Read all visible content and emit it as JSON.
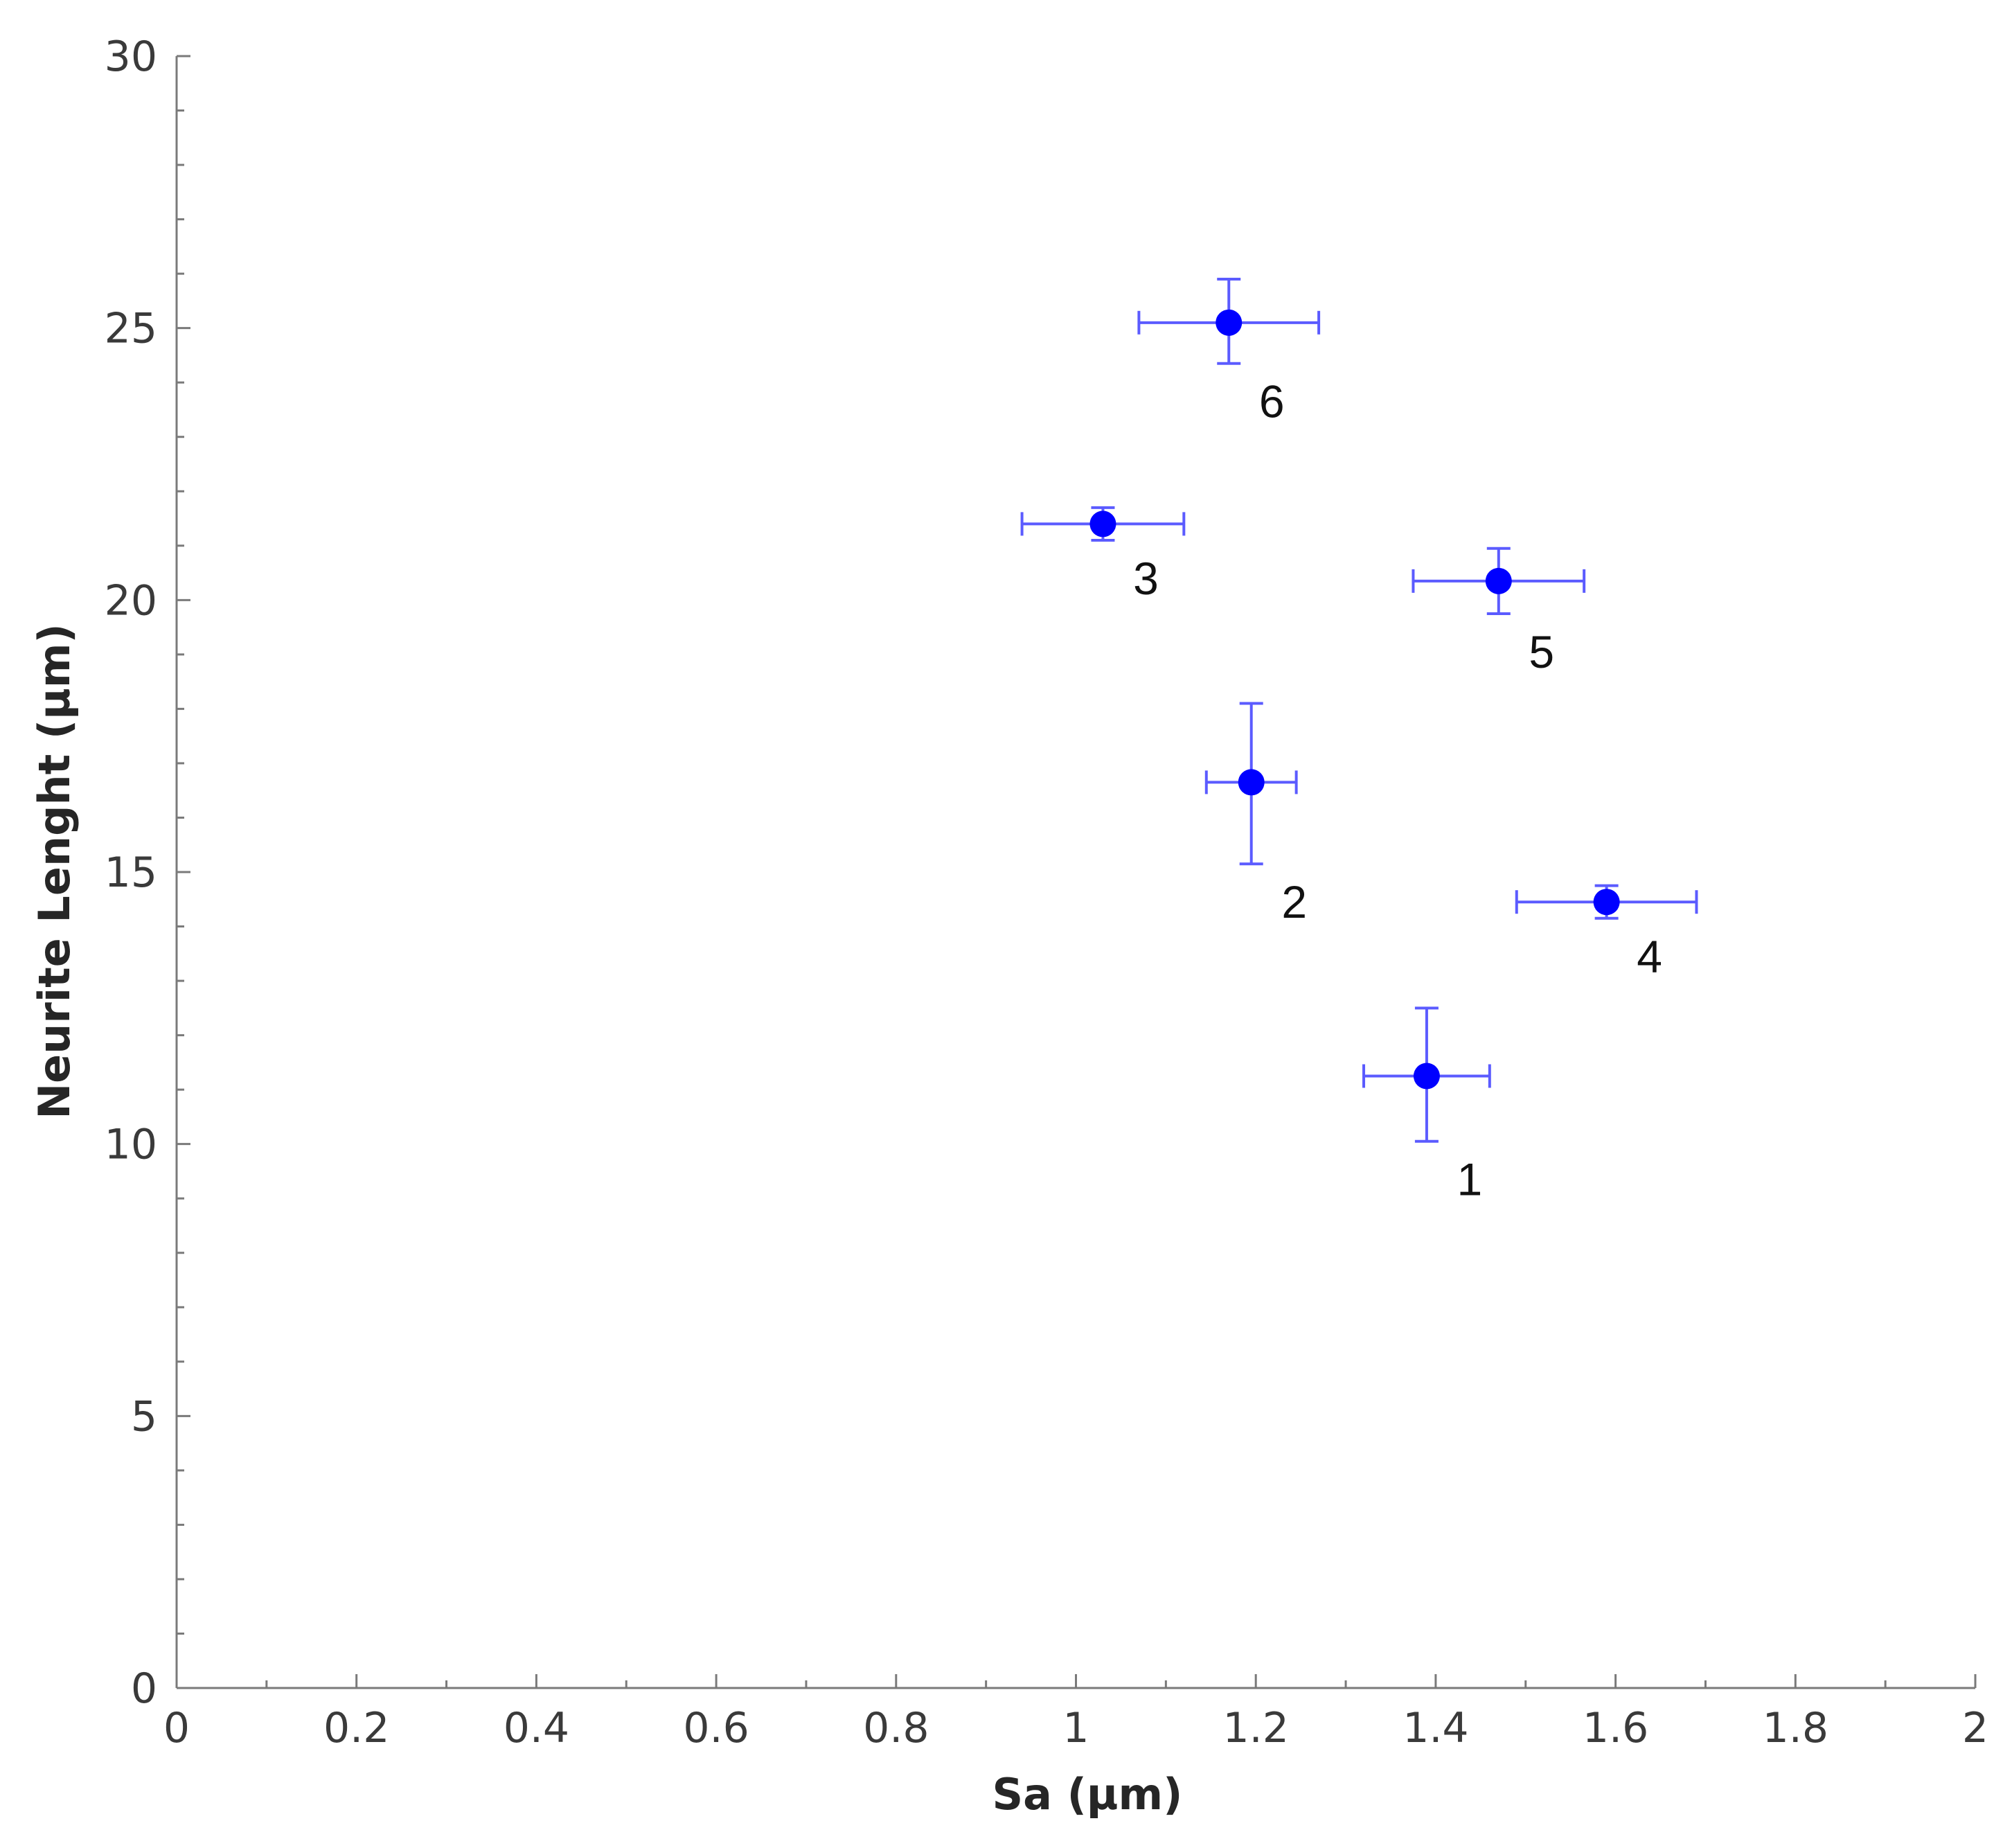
{
  "chart_data": {
    "type": "scatter",
    "xlabel": "Sa  (µm)",
    "ylabel": "Neurite Lenght (µm)",
    "xlim": [
      0,
      2
    ],
    "ylim": [
      0,
      30
    ],
    "x_ticks": [
      0,
      0.2,
      0.4,
      0.6,
      0.8,
      1,
      1.2,
      1.4,
      1.6,
      1.8,
      2
    ],
    "x_tick_labels": [
      "0",
      "0.2",
      "0.4",
      "0.6",
      "0.8",
      "1",
      "1.2",
      "1.4",
      "1.6",
      "1.8",
      "2"
    ],
    "y_ticks": [
      0,
      5,
      10,
      15,
      20,
      25,
      30
    ],
    "y_tick_labels": [
      "0",
      "5",
      "10",
      "15",
      "20",
      "25",
      "30"
    ],
    "grid": false,
    "colors": {
      "marker": "#0000ff",
      "errorbar": "#5b5bff",
      "axis": "#7a7a7a"
    },
    "points": [
      {
        "label": "1",
        "x": 1.39,
        "y": 11.25,
        "xerr": 0.07,
        "y_low": 10.05,
        "y_high": 12.5
      },
      {
        "label": "2",
        "x": 1.195,
        "y": 16.65,
        "xerr": 0.05,
        "y_low": 15.15,
        "y_high": 18.1
      },
      {
        "label": "3",
        "x": 1.03,
        "y": 21.4,
        "xerr": 0.09,
        "y_low": 21.1,
        "y_high": 21.7
      },
      {
        "label": "4",
        "x": 1.59,
        "y": 14.45,
        "xerr": 0.1,
        "y_low": 14.15,
        "y_high": 14.75
      },
      {
        "label": "5",
        "x": 1.47,
        "y": 20.35,
        "xerr": 0.095,
        "y_low": 19.75,
        "y_high": 20.95
      },
      {
        "label": "6",
        "x": 1.17,
        "y": 25.1,
        "xerr": 0.1,
        "y_low": 24.35,
        "y_high": 25.9
      }
    ]
  }
}
